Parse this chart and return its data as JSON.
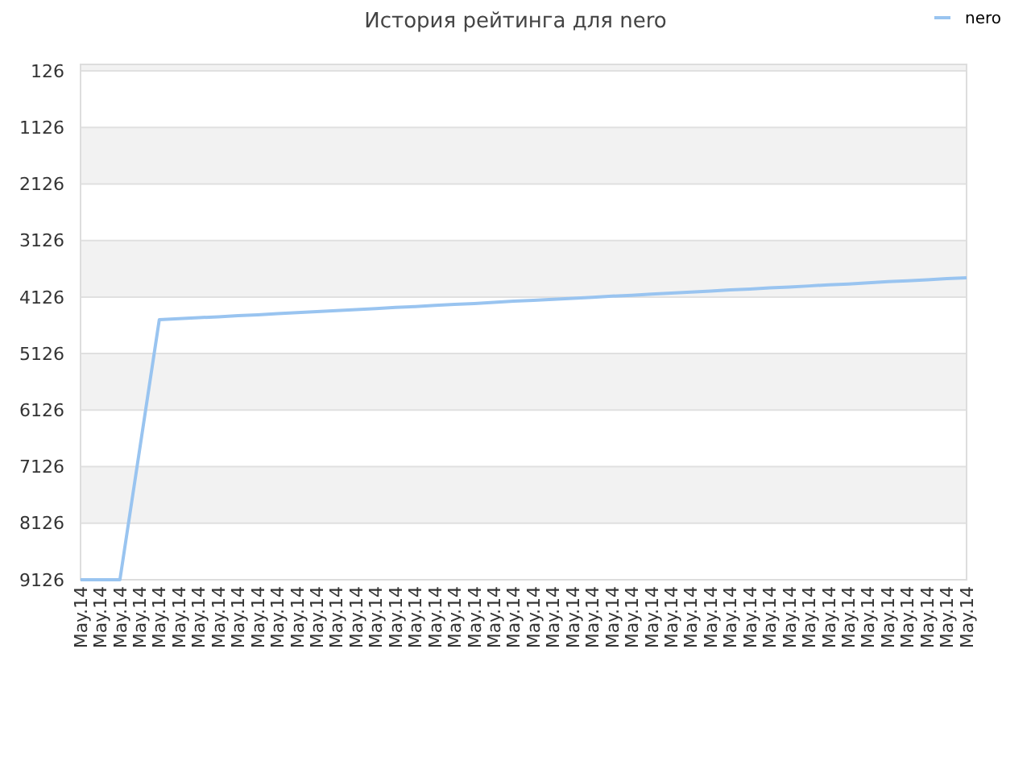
{
  "chart_data": {
    "type": "line",
    "title": "История рейтинга для nero",
    "categories": [
      "May.14",
      "May.14",
      "May.14",
      "May.14",
      "May.14",
      "May.14",
      "May.14",
      "May.14",
      "May.14",
      "May.14",
      "May.14",
      "May.14",
      "May.14",
      "May.14",
      "May.14",
      "May.14",
      "May.14",
      "May.14",
      "May.14",
      "May.14",
      "May.14",
      "May.14",
      "May.14",
      "May.14",
      "May.14",
      "May.14",
      "May.14",
      "May.14",
      "May.14",
      "May.14",
      "May.14",
      "May.14",
      "May.14",
      "May.14",
      "May.14",
      "May.14",
      "May.14",
      "May.14",
      "May.14",
      "May.14",
      "May.14",
      "May.14",
      "May.14",
      "May.14",
      "May.14",
      "May.14"
    ],
    "series": [
      {
        "name": "nero",
        "color": "#99c4f0",
        "values": [
          9126,
          9126,
          9126,
          6826,
          4526,
          4510,
          4490,
          4475,
          4455,
          4440,
          4420,
          4400,
          4385,
          4365,
          4350,
          4330,
          4310,
          4295,
          4275,
          4255,
          4240,
          4220,
          4200,
          4185,
          4165,
          4150,
          4130,
          4110,
          4095,
          4075,
          4055,
          4040,
          4020,
          4000,
          3985,
          3965,
          3950,
          3930,
          3910,
          3895,
          3875,
          3855,
          3840,
          3820,
          3800,
          3785
        ]
      }
    ],
    "ylim": [
      9126,
      12
    ],
    "yticks": [
      126,
      1126,
      2126,
      3126,
      4126,
      5126,
      6126,
      7126,
      8126,
      9126
    ],
    "grid": true,
    "legend": "top right",
    "marker": "none",
    "line_style": "solid"
  }
}
